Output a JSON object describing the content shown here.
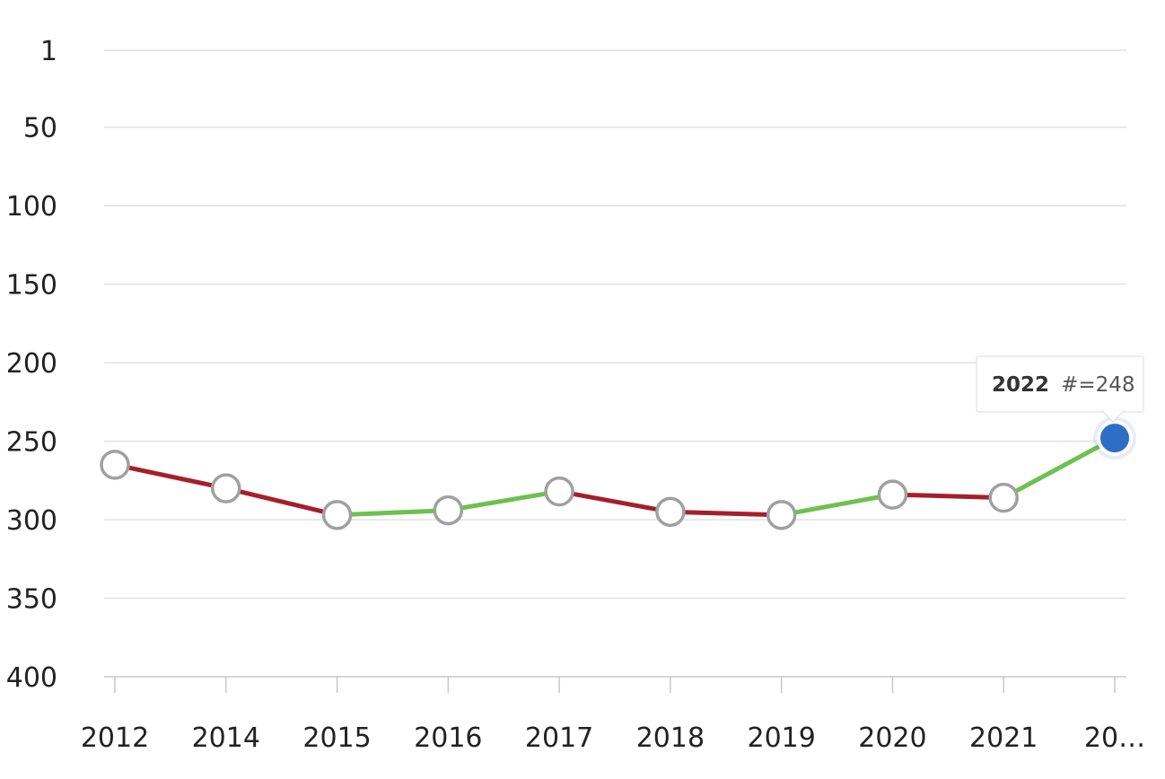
{
  "chart_data": {
    "type": "line",
    "categories": [
      "2012",
      "2014",
      "2015",
      "2016",
      "2017",
      "2018",
      "2019",
      "2020",
      "2021",
      "20…"
    ],
    "values": [
      265,
      280,
      297,
      294,
      282,
      295,
      297,
      284,
      286,
      248
    ],
    "y_axis": {
      "reversed": true,
      "min": 1,
      "max": 400,
      "ticks": [
        1,
        50,
        100,
        150,
        200,
        250,
        300,
        350,
        400
      ]
    },
    "grid": true,
    "segment_colors": {
      "worse": "#a51f2b",
      "better": "#6ec14f"
    },
    "marker": {
      "fill": "#ffffff",
      "stroke": "#a0a0a0",
      "active_fill": "#2f6ec7"
    },
    "tooltip": {
      "category": "2022",
      "label": "2022",
      "value_text": "#=248",
      "point_index": 9
    }
  }
}
